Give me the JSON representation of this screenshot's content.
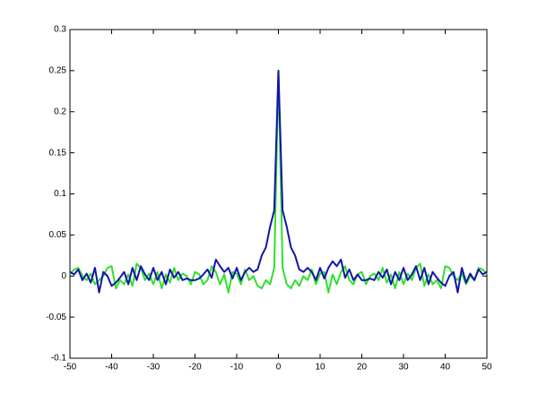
{
  "chart_data": {
    "type": "line",
    "x": [
      -50,
      -49,
      -48,
      -47,
      -46,
      -45,
      -44,
      -43,
      -42,
      -41,
      -40,
      -39,
      -38,
      -37,
      -36,
      -35,
      -34,
      -33,
      -32,
      -31,
      -30,
      -29,
      -28,
      -27,
      -26,
      -25,
      -24,
      -23,
      -22,
      -21,
      -20,
      -19,
      -18,
      -17,
      -16,
      -15,
      -14,
      -13,
      -12,
      -11,
      -10,
      -9,
      -8,
      -7,
      -6,
      -5,
      -4,
      -3,
      -2,
      -1,
      0,
      1,
      2,
      3,
      4,
      5,
      6,
      7,
      8,
      9,
      10,
      11,
      12,
      13,
      14,
      15,
      16,
      17,
      18,
      19,
      20,
      21,
      22,
      23,
      24,
      25,
      26,
      27,
      28,
      29,
      30,
      31,
      32,
      33,
      34,
      35,
      36,
      37,
      38,
      39,
      40,
      41,
      42,
      43,
      44,
      45,
      46,
      47,
      48,
      49,
      50
    ],
    "series": [
      {
        "color": "#2fe02f",
        "values": [
          0.002,
          0.008,
          0.01,
          0.0,
          -0.005,
          0.003,
          -0.01,
          -0.005,
          0.0,
          0.01,
          0.012,
          -0.015,
          -0.005,
          -0.01,
          0.002,
          -0.012,
          0.015,
          0.01,
          -0.005,
          0.003,
          -0.01,
          0.005,
          -0.015,
          0.002,
          -0.008,
          0.01,
          -0.005,
          0.003,
          0.0,
          -0.01,
          0.005,
          0.002,
          -0.01,
          -0.005,
          0.012,
          0.005,
          -0.01,
          0.002,
          -0.02,
          0.005,
          0.003,
          -0.01,
          0.008,
          -0.005,
          0.0,
          -0.012,
          -0.015,
          -0.005,
          -0.01,
          0.01,
          0.25,
          0.01,
          -0.01,
          -0.015,
          -0.005,
          -0.012,
          0.0,
          -0.005,
          0.008,
          -0.01,
          0.003,
          0.005,
          -0.02,
          0.002,
          -0.01,
          0.005,
          0.012,
          -0.005,
          -0.01,
          0.002,
          0.005,
          -0.01,
          0.0,
          0.003,
          -0.005,
          0.01,
          -0.008,
          0.002,
          -0.015,
          0.005,
          -0.01,
          0.003,
          -0.005,
          0.01,
          0.015,
          -0.012,
          0.002,
          -0.01,
          -0.005,
          -0.015,
          0.012,
          0.01,
          0.0,
          -0.005,
          0.003,
          -0.01,
          0.0,
          -0.005,
          0.01,
          0.008,
          0.002
        ]
      },
      {
        "color": "#1414a8",
        "values": [
          0.005,
          0.002,
          0.008,
          -0.005,
          0.003,
          -0.008,
          0.01,
          -0.02,
          0.005,
          0.0,
          -0.012,
          -0.008,
          -0.002,
          0.005,
          -0.01,
          0.01,
          -0.005,
          0.012,
          0.002,
          -0.005,
          0.01,
          -0.005,
          0.005,
          -0.01,
          0.008,
          -0.002,
          0.005,
          -0.005,
          -0.003,
          -0.005,
          -0.005,
          -0.003,
          0.002,
          0.008,
          -0.002,
          0.02,
          0.012,
          0.005,
          0.01,
          -0.003,
          0.01,
          -0.005,
          0.005,
          0.01,
          0.005,
          0.008,
          0.025,
          0.035,
          0.06,
          0.08,
          0.25,
          0.08,
          0.06,
          0.035,
          0.025,
          0.008,
          0.005,
          0.01,
          0.005,
          -0.005,
          0.01,
          -0.003,
          0.01,
          0.018,
          0.012,
          0.02,
          -0.002,
          0.008,
          -0.005,
          0.002,
          -0.005,
          -0.005,
          -0.003,
          -0.005,
          0.005,
          -0.002,
          0.008,
          -0.01,
          0.005,
          -0.005,
          0.01,
          -0.005,
          0.002,
          0.012,
          -0.005,
          0.01,
          -0.01,
          0.005,
          -0.002,
          -0.008,
          -0.012,
          0.0,
          0.005,
          -0.02,
          0.01,
          -0.008,
          0.003,
          -0.005,
          0.008,
          0.002,
          0.005
        ]
      }
    ],
    "xlim": [
      -50,
      50
    ],
    "xticks": [
      -50,
      -40,
      -30,
      -20,
      -10,
      0,
      10,
      20,
      30,
      40,
      50
    ],
    "ylim": [
      -0.1,
      0.3
    ],
    "yticks": [
      -0.1,
      -0.05,
      0,
      0.05,
      0.1,
      0.15,
      0.2,
      0.25,
      0.3
    ],
    "grid": false
  }
}
